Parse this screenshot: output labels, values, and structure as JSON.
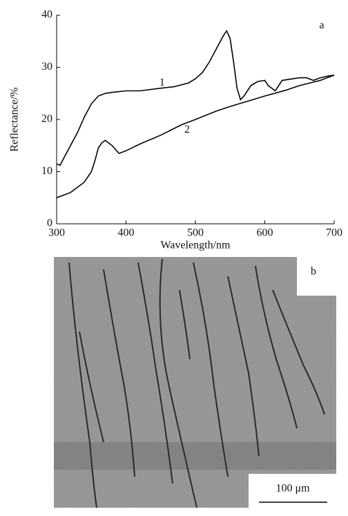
{
  "chart_data": {
    "type": "line",
    "xlabel": "Wavelength/nm",
    "ylabel": "Reflectance/%",
    "xlim": [
      300,
      700
    ],
    "xticks": [
      300,
      400,
      500,
      600,
      700
    ],
    "ylim": [
      0,
      40
    ],
    "yticks": [
      0,
      10,
      20,
      30,
      40
    ],
    "series": [
      {
        "name": "1",
        "color": "#000000",
        "x": [
          300,
          305,
          310,
          320,
          330,
          340,
          350,
          360,
          370,
          380,
          400,
          420,
          450,
          470,
          490,
          500,
          510,
          520,
          530,
          540,
          545,
          550,
          555,
          560,
          565,
          570,
          580,
          590,
          600,
          605,
          615,
          625,
          640,
          650,
          660,
          670,
          680,
          690,
          700
        ],
        "values": [
          11.5,
          11.2,
          12.5,
          15,
          17.5,
          20.5,
          23,
          24.5,
          25,
          25.2,
          25.5,
          25.5,
          26,
          26.3,
          27,
          27.8,
          29,
          31,
          33.5,
          36,
          37,
          35.5,
          31,
          26,
          23.8,
          24.5,
          26.5,
          27.3,
          27.5,
          26.5,
          25.5,
          27.5,
          27.8,
          28,
          28,
          27.5,
          28,
          28.3,
          28.5
        ]
      },
      {
        "name": "2",
        "color": "#000000",
        "x": [
          300,
          310,
          320,
          330,
          340,
          350,
          355,
          360,
          365,
          370,
          375,
          380,
          390,
          400,
          420,
          450,
          480,
          500,
          530,
          550,
          580,
          600,
          630,
          650,
          680,
          700
        ],
        "values": [
          5,
          5.5,
          6,
          7,
          8,
          10,
          12,
          14.5,
          15.5,
          16,
          15.5,
          15,
          13.5,
          14,
          15.3,
          17,
          19,
          20,
          21.6,
          22.5,
          23.7,
          24.5,
          25.6,
          26.5,
          27.5,
          28.5
        ]
      }
    ],
    "annotations": [
      {
        "text": "1",
        "x": 452,
        "y": 27
      },
      {
        "text": "2",
        "x": 488,
        "y": 18
      },
      {
        "text": "a",
        "x": 682,
        "y": 38
      }
    ]
  },
  "image": {
    "label": "b",
    "scale_bar": "100 μm"
  }
}
